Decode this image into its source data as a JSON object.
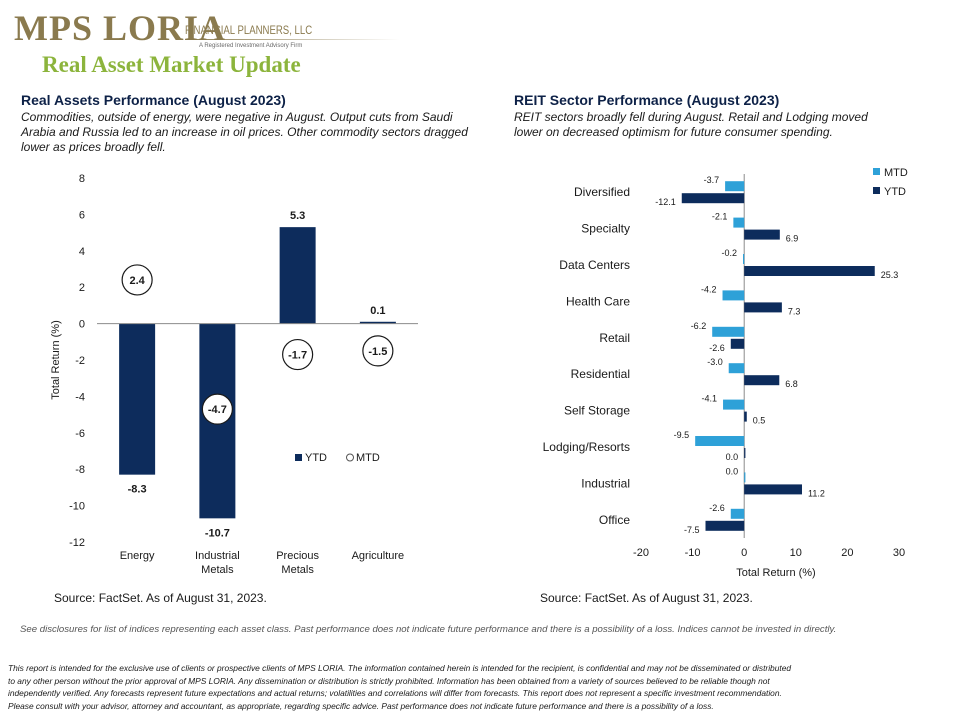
{
  "logo": {
    "mark": "MPS LORIA",
    "subtitle": "FINANCIAL PLANNERS, LLC",
    "tagline": "A Registered Investment Advisory Firm"
  },
  "page_title": "Real Asset Market Update",
  "left": {
    "title": "Real Assets Performance (August 2023)",
    "description": "Commodities, outside of energy, were negative in August. Output cuts from Saudi Arabia and Russia led to an increase in oil prices. Other commodity sectors dragged lower as prices broadly fell.",
    "source": "Source: FactSet. As of August 31, 2023."
  },
  "right": {
    "title": "REIT Sector Performance (August 2023)",
    "description": "REIT sectors broadly fell during August. Retail and Lodging moved lower on decreased optimism for future consumer spending.",
    "source": "Source: FactSet. As of August 31, 2023."
  },
  "chart_data": [
    {
      "type": "bar",
      "orientation": "vertical",
      "categories": [
        "Energy",
        "Industrial Metals",
        "Precious Metals",
        "Agriculture"
      ],
      "category_lines": [
        [
          "Energy"
        ],
        [
          "Industrial",
          "Metals"
        ],
        [
          "Precious",
          "Metals"
        ],
        [
          "Agriculture"
        ]
      ],
      "series": [
        {
          "name": "YTD",
          "values": [
            -8.3,
            -10.7,
            5.3,
            0.1
          ],
          "color": "#0d2c5c",
          "style": "bar"
        },
        {
          "name": "MTD",
          "values": [
            2.4,
            -4.7,
            -1.7,
            -1.5
          ],
          "color": "#0d2c5c",
          "style": "circle-label"
        }
      ],
      "title": "",
      "ylabel": "Total Return (%)",
      "ylim": [
        -12,
        8
      ],
      "yticks": [
        8,
        6,
        4,
        2,
        0,
        -2,
        -4,
        -6,
        -8,
        -10,
        -12
      ],
      "legend": "center-right",
      "grid": false
    },
    {
      "type": "bar",
      "orientation": "horizontal",
      "categories": [
        "Diversified",
        "Specialty",
        "Data Centers",
        "Health Care",
        "Retail",
        "Residential",
        "Self Storage",
        "Lodging/Resorts",
        "Industrial",
        "Office"
      ],
      "series": [
        {
          "name": "MTD",
          "values": [
            -3.7,
            -2.1,
            -0.2,
            -4.2,
            -6.2,
            -3.0,
            -4.1,
            -9.5,
            0.0,
            -2.6
          ],
          "labels": [
            "-3.7",
            "-2.1",
            "-0.2",
            "-4.2",
            "-6.2",
            "-3.0",
            "-4.1",
            "-9.5",
            "0.0",
            "-2.6"
          ],
          "color": "#2ea1d8"
        },
        {
          "name": "YTD",
          "values": [
            -12.1,
            6.9,
            25.3,
            7.3,
            -2.6,
            6.8,
            0.5,
            0.0,
            11.2,
            -7.5
          ],
          "labels": [
            "-12.1",
            "6.9",
            "25.3",
            "7.3",
            "-2.6",
            "6.8",
            "0.5",
            "0.0",
            "11.2",
            "-7.5"
          ],
          "color": "#0d2c5c"
        }
      ],
      "title": "",
      "xlabel": "Total Return (%)",
      "xlim": [
        -20,
        30
      ],
      "xticks": [
        -20,
        -10,
        0,
        10,
        20,
        30
      ],
      "legend": "top-right",
      "grid": false
    }
  ],
  "disclosure": "See disclosures for list of indices representing each asset class. Past performance does not indicate future performance and there is a possibility of a loss. Indices cannot be invested in directly.",
  "footer": [
    "This report is intended for the exclusive use of clients or prospective clients of MPS LORIA. The information contained herein is intended for the recipient, is confidential and may not be disseminated or distributed",
    "to any other person without the prior approval of MPS LORIA. Any dissemination or distribution is strictly prohibited. Information has been obtained from a variety of sources believed to be reliable though not",
    "independently verified. Any forecasts represent future expectations and actual returns; volatilities and correlations will differ from forecasts. This report does not represent a specific investment recommendation.",
    "Please consult with your advisor, attorney and accountant, as appropriate, regarding specific advice. Past performance does not indicate future performance and there is a possibility of a loss."
  ]
}
